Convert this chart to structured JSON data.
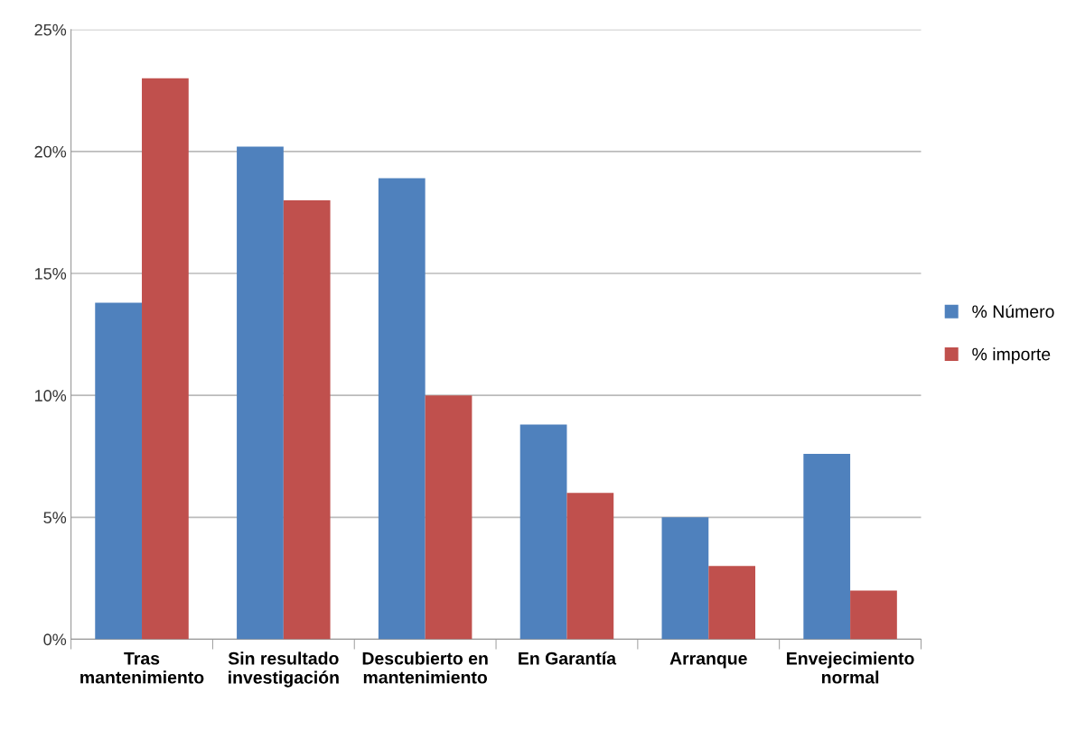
{
  "chart_data": {
    "type": "bar",
    "categories": [
      "Tras\nmantenimiento",
      "Sin resultado\ninvestigación",
      "Descubierto en\nmantenimiento",
      "En Garantía",
      "Arranque",
      "Envejecimiento\nnormal"
    ],
    "series": [
      {
        "name": "% Número",
        "color": "#4f81bd",
        "values": [
          13.8,
          20.2,
          18.9,
          8.8,
          5.0,
          7.6
        ]
      },
      {
        "name": "% importe",
        "color": "#c0504d",
        "values": [
          23.0,
          18.0,
          10.0,
          6.0,
          3.0,
          2.0
        ]
      }
    ],
    "ylim": [
      0,
      25
    ],
    "yticks": [
      {
        "value": 0,
        "label": "0%"
      },
      {
        "value": 5,
        "label": "5%"
      },
      {
        "value": 10,
        "label": "10%"
      },
      {
        "value": 15,
        "label": "15%"
      },
      {
        "value": 20,
        "label": "20%"
      },
      {
        "value": 25,
        "label": "25%"
      }
    ],
    "grid": "y",
    "legend": "right"
  }
}
